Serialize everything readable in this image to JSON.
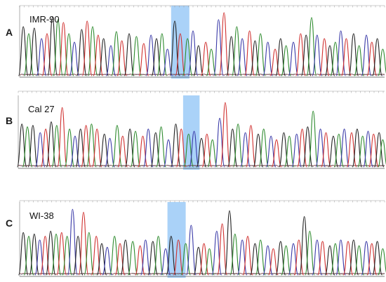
{
  "chart_data": [
    {
      "type": "line",
      "panel": "A",
      "sample": "IMR-90",
      "peaks": [
        {
          "b": "G",
          "x": 0.01,
          "h": 0.72
        },
        {
          "b": "A",
          "x": 0.025,
          "h": 0.62
        },
        {
          "b": "G",
          "x": 0.04,
          "h": 0.7
        },
        {
          "b": "C",
          "x": 0.06,
          "h": 0.55
        },
        {
          "b": "T",
          "x": 0.075,
          "h": 0.62
        },
        {
          "b": "G",
          "x": 0.09,
          "h": 0.86
        },
        {
          "b": "A",
          "x": 0.105,
          "h": 0.82
        },
        {
          "b": "T",
          "x": 0.12,
          "h": 0.78
        },
        {
          "b": "A",
          "x": 0.135,
          "h": 0.62
        },
        {
          "b": "C",
          "x": 0.15,
          "h": 0.5
        },
        {
          "b": "G",
          "x": 0.17,
          "h": 0.68
        },
        {
          "b": "T",
          "x": 0.185,
          "h": 0.8
        },
        {
          "b": "A",
          "x": 0.2,
          "h": 0.72
        },
        {
          "b": "T",
          "x": 0.215,
          "h": 0.6
        },
        {
          "b": "G",
          "x": 0.23,
          "h": 0.55
        },
        {
          "b": "C",
          "x": 0.25,
          "h": 0.45
        },
        {
          "b": "A",
          "x": 0.265,
          "h": 0.65
        },
        {
          "b": "T",
          "x": 0.28,
          "h": 0.52
        },
        {
          "b": "G",
          "x": 0.3,
          "h": 0.62
        },
        {
          "b": "A",
          "x": 0.32,
          "h": 0.58
        },
        {
          "b": "T",
          "x": 0.34,
          "h": 0.48
        },
        {
          "b": "C",
          "x": 0.36,
          "h": 0.6
        },
        {
          "b": "G",
          "x": 0.375,
          "h": 0.55
        },
        {
          "b": "A",
          "x": 0.39,
          "h": 0.62
        },
        {
          "b": "C",
          "x": 0.405,
          "h": 0.4
        },
        {
          "b": "G",
          "x": 0.425,
          "h": 0.8
        },
        {
          "b": "T",
          "x": 0.44,
          "h": 0.62
        },
        {
          "b": "A",
          "x": 0.46,
          "h": 0.55
        },
        {
          "b": "C",
          "x": 0.475,
          "h": 0.66
        },
        {
          "b": "G",
          "x": 0.49,
          "h": 0.45
        },
        {
          "b": "T",
          "x": 0.51,
          "h": 0.5
        },
        {
          "b": "A",
          "x": 0.525,
          "h": 0.4
        },
        {
          "b": "C",
          "x": 0.545,
          "h": 0.82
        },
        {
          "b": "T",
          "x": 0.56,
          "h": 0.92
        },
        {
          "b": "G",
          "x": 0.58,
          "h": 0.58
        },
        {
          "b": "A",
          "x": 0.595,
          "h": 0.72
        },
        {
          "b": "C",
          "x": 0.61,
          "h": 0.55
        },
        {
          "b": "T",
          "x": 0.63,
          "h": 0.66
        },
        {
          "b": "G",
          "x": 0.645,
          "h": 0.52
        },
        {
          "b": "A",
          "x": 0.66,
          "h": 0.62
        },
        {
          "b": "C",
          "x": 0.68,
          "h": 0.5
        },
        {
          "b": "T",
          "x": 0.7,
          "h": 0.4
        },
        {
          "b": "G",
          "x": 0.715,
          "h": 0.55
        },
        {
          "b": "A",
          "x": 0.73,
          "h": 0.45
        },
        {
          "b": "C",
          "x": 0.75,
          "h": 0.5
        },
        {
          "b": "T",
          "x": 0.77,
          "h": 0.62
        },
        {
          "b": "G",
          "x": 0.785,
          "h": 0.6
        },
        {
          "b": "A",
          "x": 0.8,
          "h": 0.85
        },
        {
          "b": "C",
          "x": 0.815,
          "h": 0.6
        },
        {
          "b": "T",
          "x": 0.835,
          "h": 0.55
        },
        {
          "b": "G",
          "x": 0.85,
          "h": 0.45
        },
        {
          "b": "A",
          "x": 0.865,
          "h": 0.5
        },
        {
          "b": "C",
          "x": 0.88,
          "h": 0.66
        },
        {
          "b": "T",
          "x": 0.895,
          "h": 0.55
        },
        {
          "b": "G",
          "x": 0.915,
          "h": 0.62
        },
        {
          "b": "A",
          "x": 0.93,
          "h": 0.45
        },
        {
          "b": "C",
          "x": 0.95,
          "h": 0.6
        },
        {
          "b": "T",
          "x": 0.965,
          "h": 0.5
        },
        {
          "b": "G",
          "x": 0.98,
          "h": 0.55
        },
        {
          "b": "A",
          "x": 0.995,
          "h": 0.4
        }
      ],
      "highlight": [
        0.415,
        0.465
      ]
    },
    {
      "type": "line",
      "panel": "B",
      "sample": "Cal 27",
      "peaks": [
        {
          "b": "G",
          "x": 0.01,
          "h": 0.62
        },
        {
          "b": "A",
          "x": 0.025,
          "h": 0.58
        },
        {
          "b": "G",
          "x": 0.04,
          "h": 0.6
        },
        {
          "b": "C",
          "x": 0.06,
          "h": 0.5
        },
        {
          "b": "T",
          "x": 0.075,
          "h": 0.55
        },
        {
          "b": "G",
          "x": 0.09,
          "h": 0.65
        },
        {
          "b": "A",
          "x": 0.105,
          "h": 0.6
        },
        {
          "b": "T",
          "x": 0.12,
          "h": 0.85
        },
        {
          "b": "A",
          "x": 0.14,
          "h": 0.55
        },
        {
          "b": "C",
          "x": 0.155,
          "h": 0.45
        },
        {
          "b": "G",
          "x": 0.17,
          "h": 0.55
        },
        {
          "b": "T",
          "x": 0.185,
          "h": 0.6
        },
        {
          "b": "A",
          "x": 0.2,
          "h": 0.62
        },
        {
          "b": "T",
          "x": 0.215,
          "h": 0.55
        },
        {
          "b": "G",
          "x": 0.235,
          "h": 0.48
        },
        {
          "b": "C",
          "x": 0.25,
          "h": 0.42
        },
        {
          "b": "A",
          "x": 0.27,
          "h": 0.6
        },
        {
          "b": "T",
          "x": 0.285,
          "h": 0.45
        },
        {
          "b": "G",
          "x": 0.305,
          "h": 0.55
        },
        {
          "b": "A",
          "x": 0.32,
          "h": 0.52
        },
        {
          "b": "T",
          "x": 0.34,
          "h": 0.45
        },
        {
          "b": "C",
          "x": 0.355,
          "h": 0.55
        },
        {
          "b": "G",
          "x": 0.375,
          "h": 0.5
        },
        {
          "b": "A",
          "x": 0.39,
          "h": 0.58
        },
        {
          "b": "C",
          "x": 0.41,
          "h": 0.4
        },
        {
          "b": "G",
          "x": 0.43,
          "h": 0.62
        },
        {
          "b": "T",
          "x": 0.445,
          "h": 0.55
        },
        {
          "b": "A",
          "x": 0.465,
          "h": 0.48
        },
        {
          "b": "C",
          "x": 0.48,
          "h": 0.52
        },
        {
          "b": "G",
          "x": 0.5,
          "h": 0.42
        },
        {
          "b": "T",
          "x": 0.515,
          "h": 0.48
        },
        {
          "b": "A",
          "x": 0.53,
          "h": 0.4
        },
        {
          "b": "C",
          "x": 0.55,
          "h": 0.7
        },
        {
          "b": "T",
          "x": 0.565,
          "h": 0.92
        },
        {
          "b": "G",
          "x": 0.585,
          "h": 0.55
        },
        {
          "b": "A",
          "x": 0.6,
          "h": 0.62
        },
        {
          "b": "C",
          "x": 0.62,
          "h": 0.5
        },
        {
          "b": "T",
          "x": 0.635,
          "h": 0.6
        },
        {
          "b": "G",
          "x": 0.655,
          "h": 0.48
        },
        {
          "b": "A",
          "x": 0.67,
          "h": 0.55
        },
        {
          "b": "C",
          "x": 0.69,
          "h": 0.45
        },
        {
          "b": "T",
          "x": 0.705,
          "h": 0.4
        },
        {
          "b": "G",
          "x": 0.725,
          "h": 0.5
        },
        {
          "b": "A",
          "x": 0.74,
          "h": 0.45
        },
        {
          "b": "C",
          "x": 0.76,
          "h": 0.48
        },
        {
          "b": "T",
          "x": 0.775,
          "h": 0.55
        },
        {
          "b": "G",
          "x": 0.79,
          "h": 0.58
        },
        {
          "b": "A",
          "x": 0.805,
          "h": 0.8
        },
        {
          "b": "C",
          "x": 0.825,
          "h": 0.55
        },
        {
          "b": "T",
          "x": 0.84,
          "h": 0.5
        },
        {
          "b": "G",
          "x": 0.86,
          "h": 0.45
        },
        {
          "b": "A",
          "x": 0.875,
          "h": 0.48
        },
        {
          "b": "C",
          "x": 0.89,
          "h": 0.55
        },
        {
          "b": "T",
          "x": 0.91,
          "h": 0.5
        },
        {
          "b": "G",
          "x": 0.925,
          "h": 0.55
        },
        {
          "b": "A",
          "x": 0.94,
          "h": 0.45
        },
        {
          "b": "C",
          "x": 0.955,
          "h": 0.52
        },
        {
          "b": "T",
          "x": 0.97,
          "h": 0.48
        },
        {
          "b": "G",
          "x": 0.985,
          "h": 0.5
        },
        {
          "b": "A",
          "x": 0.995,
          "h": 0.4
        }
      ],
      "highlight": [
        0.45,
        0.495
      ]
    },
    {
      "type": "line",
      "panel": "C",
      "sample": "WI-38",
      "peaks": [
        {
          "b": "G",
          "x": 0.01,
          "h": 0.6
        },
        {
          "b": "A",
          "x": 0.025,
          "h": 0.55
        },
        {
          "b": "G",
          "x": 0.04,
          "h": 0.58
        },
        {
          "b": "C",
          "x": 0.055,
          "h": 0.5
        },
        {
          "b": "T",
          "x": 0.07,
          "h": 0.55
        },
        {
          "b": "G",
          "x": 0.085,
          "h": 0.62
        },
        {
          "b": "A",
          "x": 0.1,
          "h": 0.58
        },
        {
          "b": "T",
          "x": 0.115,
          "h": 0.6
        },
        {
          "b": "A",
          "x": 0.13,
          "h": 0.55
        },
        {
          "b": "C",
          "x": 0.145,
          "h": 0.92
        },
        {
          "b": "G",
          "x": 0.16,
          "h": 0.55
        },
        {
          "b": "T",
          "x": 0.175,
          "h": 0.88
        },
        {
          "b": "A",
          "x": 0.19,
          "h": 0.6
        },
        {
          "b": "T",
          "x": 0.21,
          "h": 0.55
        },
        {
          "b": "G",
          "x": 0.225,
          "h": 0.45
        },
        {
          "b": "C",
          "x": 0.24,
          "h": 0.4
        },
        {
          "b": "A",
          "x": 0.26,
          "h": 0.55
        },
        {
          "b": "T",
          "x": 0.275,
          "h": 0.45
        },
        {
          "b": "G",
          "x": 0.29,
          "h": 0.5
        },
        {
          "b": "A",
          "x": 0.31,
          "h": 0.48
        },
        {
          "b": "T",
          "x": 0.33,
          "h": 0.42
        },
        {
          "b": "C",
          "x": 0.345,
          "h": 0.5
        },
        {
          "b": "G",
          "x": 0.365,
          "h": 0.48
        },
        {
          "b": "A",
          "x": 0.38,
          "h": 0.55
        },
        {
          "b": "C",
          "x": 0.4,
          "h": 0.38
        },
        {
          "b": "G",
          "x": 0.415,
          "h": 0.55
        },
        {
          "b": "T",
          "x": 0.435,
          "h": 0.5
        },
        {
          "b": "A",
          "x": 0.455,
          "h": 0.45
        },
        {
          "b": "C",
          "x": 0.47,
          "h": 0.7
        },
        {
          "b": "G",
          "x": 0.49,
          "h": 0.4
        },
        {
          "b": "T",
          "x": 0.505,
          "h": 0.45
        },
        {
          "b": "A",
          "x": 0.52,
          "h": 0.38
        },
        {
          "b": "C",
          "x": 0.54,
          "h": 0.62
        },
        {
          "b": "T",
          "x": 0.555,
          "h": 0.72
        },
        {
          "b": "G",
          "x": 0.575,
          "h": 0.9
        },
        {
          "b": "A",
          "x": 0.59,
          "h": 0.58
        },
        {
          "b": "C",
          "x": 0.61,
          "h": 0.5
        },
        {
          "b": "T",
          "x": 0.625,
          "h": 0.55
        },
        {
          "b": "G",
          "x": 0.645,
          "h": 0.45
        },
        {
          "b": "A",
          "x": 0.66,
          "h": 0.5
        },
        {
          "b": "C",
          "x": 0.68,
          "h": 0.42
        },
        {
          "b": "T",
          "x": 0.695,
          "h": 0.38
        },
        {
          "b": "G",
          "x": 0.715,
          "h": 0.48
        },
        {
          "b": "A",
          "x": 0.73,
          "h": 0.42
        },
        {
          "b": "C",
          "x": 0.75,
          "h": 0.45
        },
        {
          "b": "T",
          "x": 0.765,
          "h": 0.5
        },
        {
          "b": "G",
          "x": 0.78,
          "h": 0.82
        },
        {
          "b": "A",
          "x": 0.795,
          "h": 0.62
        },
        {
          "b": "C",
          "x": 0.815,
          "h": 0.5
        },
        {
          "b": "T",
          "x": 0.83,
          "h": 0.48
        },
        {
          "b": "G",
          "x": 0.85,
          "h": 0.42
        },
        {
          "b": "A",
          "x": 0.865,
          "h": 0.45
        },
        {
          "b": "C",
          "x": 0.88,
          "h": 0.5
        },
        {
          "b": "T",
          "x": 0.9,
          "h": 0.48
        },
        {
          "b": "G",
          "x": 0.915,
          "h": 0.5
        },
        {
          "b": "A",
          "x": 0.93,
          "h": 0.42
        },
        {
          "b": "C",
          "x": 0.95,
          "h": 0.48
        },
        {
          "b": "T",
          "x": 0.965,
          "h": 0.45
        },
        {
          "b": "G",
          "x": 0.98,
          "h": 0.48
        },
        {
          "b": "A",
          "x": 0.995,
          "h": 0.38
        }
      ],
      "highlight": [
        0.405,
        0.455
      ]
    }
  ],
  "colors": {
    "A": "#2e8b2e",
    "C": "#3a3aa8",
    "G": "#222222",
    "T": "#d0302f",
    "highlight": "#8ec3f5"
  }
}
